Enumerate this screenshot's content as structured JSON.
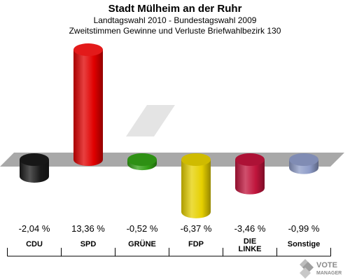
{
  "header": {
    "title": "Stadt Mülheim an der Ruhr",
    "subtitle1": "Landtagswahl 2010 - Bundestagswahl 2009",
    "subtitle2": "Zweitstimmen Gewinne und Verluste Briefwahlbezirk 130"
  },
  "logo": {
    "line1": "VOTE",
    "line2": "MANAGER"
  },
  "chart_data": {
    "type": "bar",
    "categories": [
      "CDU",
      "SPD",
      "GRÜNE",
      "FDP",
      "DIE LINKE",
      "Sonstige"
    ],
    "values": [
      -2.04,
      13.36,
      -0.52,
      -6.37,
      -3.46,
      -0.99
    ],
    "value_labels": [
      "-2,04 %",
      "13,36 %",
      "-0,52 %",
      "-6,37 %",
      "-3,46 %",
      "-0,99 %"
    ],
    "colors": [
      "#1a1a1a",
      "#e00000",
      "#33a016",
      "#e6d000",
      "#c0143c",
      "#8e9cc8"
    ],
    "ylim": [
      -7,
      14
    ],
    "grid": false,
    "legend": "none"
  }
}
